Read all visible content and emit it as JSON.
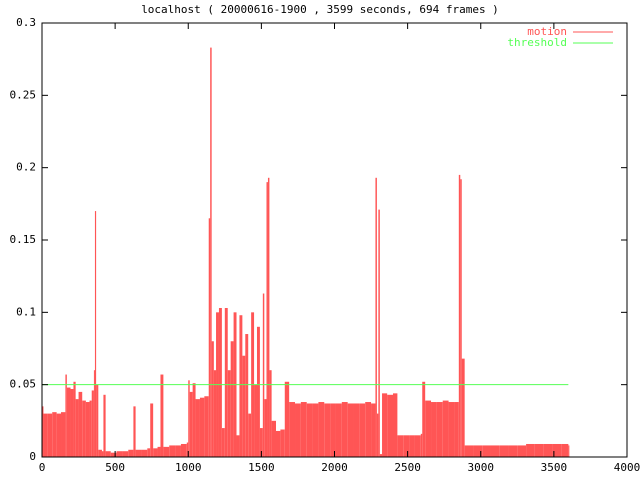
{
  "chart_data": {
    "type": "impulse",
    "title": "localhost ( 20000616-1900 , 3599 seconds, 694 frames )",
    "xlim": [
      0,
      4000
    ],
    "xticks": [
      0,
      500,
      1000,
      1500,
      2000,
      2500,
      3000,
      3500,
      4000
    ],
    "ylim": [
      0,
      0.3
    ],
    "yticks": [
      0,
      0.05,
      0.1,
      0.15,
      0.2,
      0.25,
      0.3
    ],
    "legend": "top-right",
    "series": [
      {
        "name": "motion",
        "color": "#ff5555",
        "x": [
          0,
          10,
          40,
          70,
          100,
          130,
          160,
          170,
          195,
          215,
          230,
          250,
          275,
          300,
          325,
          340,
          355,
          362,
          370,
          385,
          410,
          420,
          435,
          470,
          510,
          550,
          590,
          625,
          640,
          680,
          720,
          740,
          760,
          790,
          810,
          830,
          870,
          910,
          950,
          990,
          1000,
          1010,
          1030,
          1050,
          1080,
          1110,
          1140,
          1150,
          1160,
          1175,
          1190,
          1210,
          1230,
          1250,
          1270,
          1290,
          1310,
          1330,
          1350,
          1370,
          1390,
          1410,
          1430,
          1450,
          1470,
          1490,
          1510,
          1520,
          1535,
          1545,
          1555,
          1570,
          1600,
          1630,
          1660,
          1690,
          1730,
          1770,
          1810,
          1850,
          1890,
          1930,
          1970,
          2010,
          2050,
          2090,
          2130,
          2170,
          2210,
          2250,
          2280,
          2290,
          2300,
          2310,
          2325,
          2360,
          2400,
          2430,
          2470,
          2510,
          2550,
          2590,
          2600,
          2620,
          2660,
          2700,
          2740,
          2780,
          2820,
          2850,
          2860,
          2870,
          2890,
          2950,
          3010,
          3070,
          3130,
          3190,
          3250,
          3310,
          3370,
          3430,
          3490,
          3550,
          3599
        ],
        "values": [
          0.035,
          0.03,
          0.03,
          0.031,
          0.03,
          0.031,
          0.057,
          0.048,
          0.047,
          0.052,
          0.04,
          0.045,
          0.039,
          0.038,
          0.039,
          0.046,
          0.06,
          0.17,
          0.05,
          0.005,
          0.004,
          0.043,
          0.004,
          0.003,
          0.004,
          0.004,
          0.005,
          0.035,
          0.005,
          0.005,
          0.006,
          0.037,
          0.006,
          0.007,
          0.057,
          0.007,
          0.008,
          0.008,
          0.009,
          0.01,
          0.053,
          0.045,
          0.051,
          0.04,
          0.041,
          0.042,
          0.165,
          0.283,
          0.08,
          0.06,
          0.1,
          0.103,
          0.02,
          0.103,
          0.06,
          0.08,
          0.1,
          0.015,
          0.098,
          0.07,
          0.085,
          0.03,
          0.1,
          0.05,
          0.09,
          0.02,
          0.113,
          0.04,
          0.19,
          0.193,
          0.06,
          0.025,
          0.018,
          0.019,
          0.052,
          0.038,
          0.037,
          0.038,
          0.037,
          0.037,
          0.038,
          0.037,
          0.037,
          0.037,
          0.038,
          0.037,
          0.037,
          0.037,
          0.038,
          0.037,
          0.193,
          0.03,
          0.171,
          0.002,
          0.044,
          0.043,
          0.044,
          0.015,
          0.015,
          0.015,
          0.015,
          0.016,
          0.052,
          0.039,
          0.038,
          0.038,
          0.039,
          0.038,
          0.038,
          0.195,
          0.192,
          0.068,
          0.008,
          0.008,
          0.008,
          0.008,
          0.008,
          0.008,
          0.008,
          0.009,
          0.009,
          0.009,
          0.009,
          0.009,
          0.008
        ]
      },
      {
        "name": "threshold",
        "color": "#55ff55",
        "x": [
          0,
          3599
        ],
        "values": [
          0.05,
          0.05
        ]
      }
    ]
  }
}
